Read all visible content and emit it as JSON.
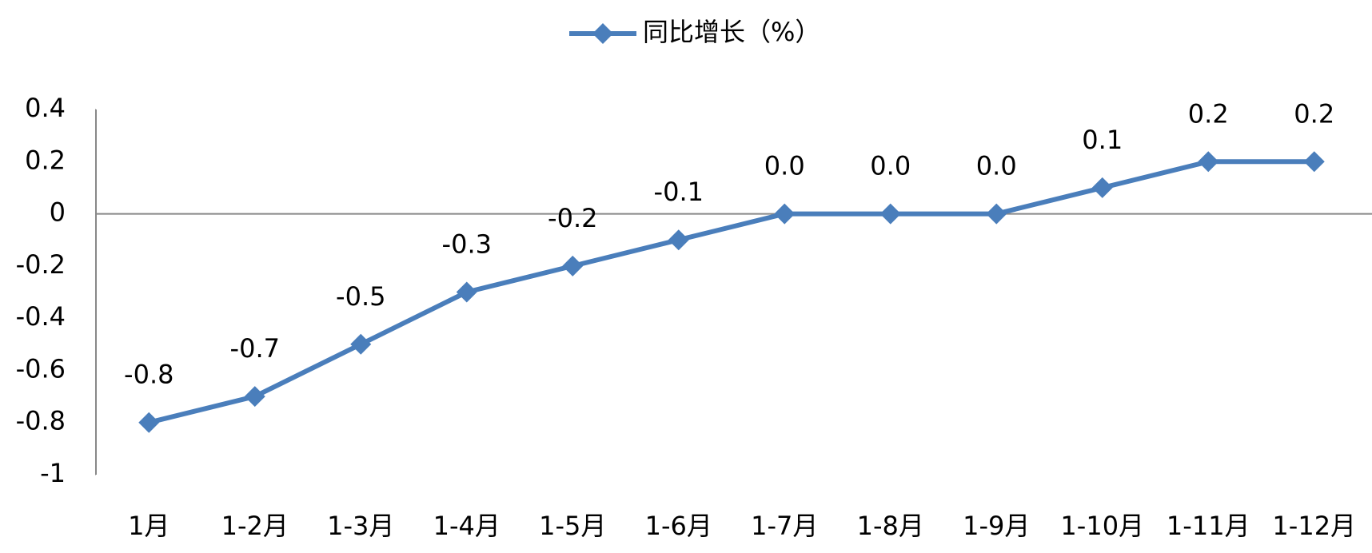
{
  "chart_data": {
    "type": "line",
    "categories": [
      "1月",
      "1-2月",
      "1-3月",
      "1-4月",
      "1-5月",
      "1-6月",
      "1-7月",
      "1-8月",
      "1-9月",
      "1-10月",
      "1-11月",
      "1-12月"
    ],
    "series": [
      {
        "name": "同比增长（%）",
        "color": "#4a7ebb",
        "values": [
          -0.8,
          -0.7,
          -0.5,
          -0.3,
          -0.2,
          -0.1,
          0,
          0,
          0,
          0.1,
          0.2,
          0.2
        ],
        "value_labels": [
          "-0.8",
          "-0.7",
          "-0.5",
          "-0.3",
          "-0.2",
          "-0.1",
          "0.0",
          "0.0",
          "0.0",
          "0.1",
          "0.2",
          "0.2"
        ]
      }
    ],
    "ylim": [
      -1,
      0.4
    ],
    "yticks": [
      -1,
      -0.8,
      -0.6,
      -0.4,
      -0.2,
      0,
      0.2,
      0.4
    ],
    "legend": "top",
    "grid": false
  }
}
